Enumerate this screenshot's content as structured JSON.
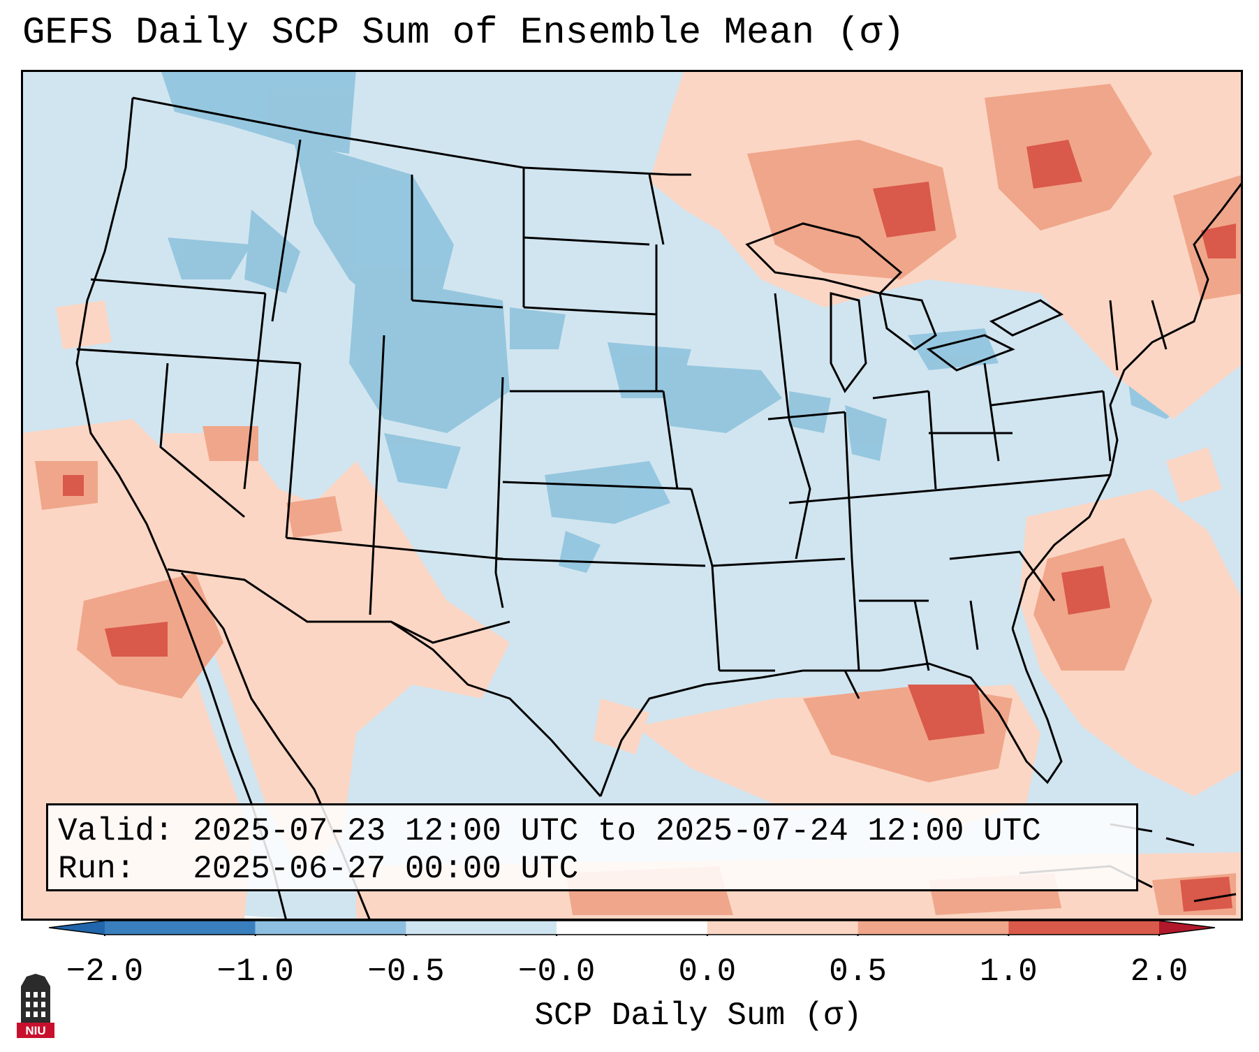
{
  "title": "GEFS Daily SCP Sum of Ensemble Mean (σ)",
  "info": {
    "valid_label": "Valid:",
    "valid_value": "2025-07-23 12:00 UTC to 2025-07-24 12:00 UTC",
    "run_label": "Run:",
    "run_value": "2025-06-27 00:00 UTC"
  },
  "colorbar": {
    "label": "SCP Daily Sum (σ)",
    "ticks": [
      "−2.0",
      "−1.0",
      "−0.5",
      "−0.0",
      "0.0",
      "0.5",
      "1.0",
      "2.0"
    ],
    "colors": [
      "#3a7fbd",
      "#8ebfe0",
      "#cfe4f1",
      "#fbd6c4",
      "#f0a68a",
      "#d9594a"
    ],
    "extend_min_color": "#2166ac",
    "extend_max_color": "#b2182b"
  },
  "map": {
    "region": "Contiguous United States",
    "land_color": "#d1e5f0",
    "outside_color": "#ffffff"
  },
  "logo": {
    "text": "NIU"
  }
}
